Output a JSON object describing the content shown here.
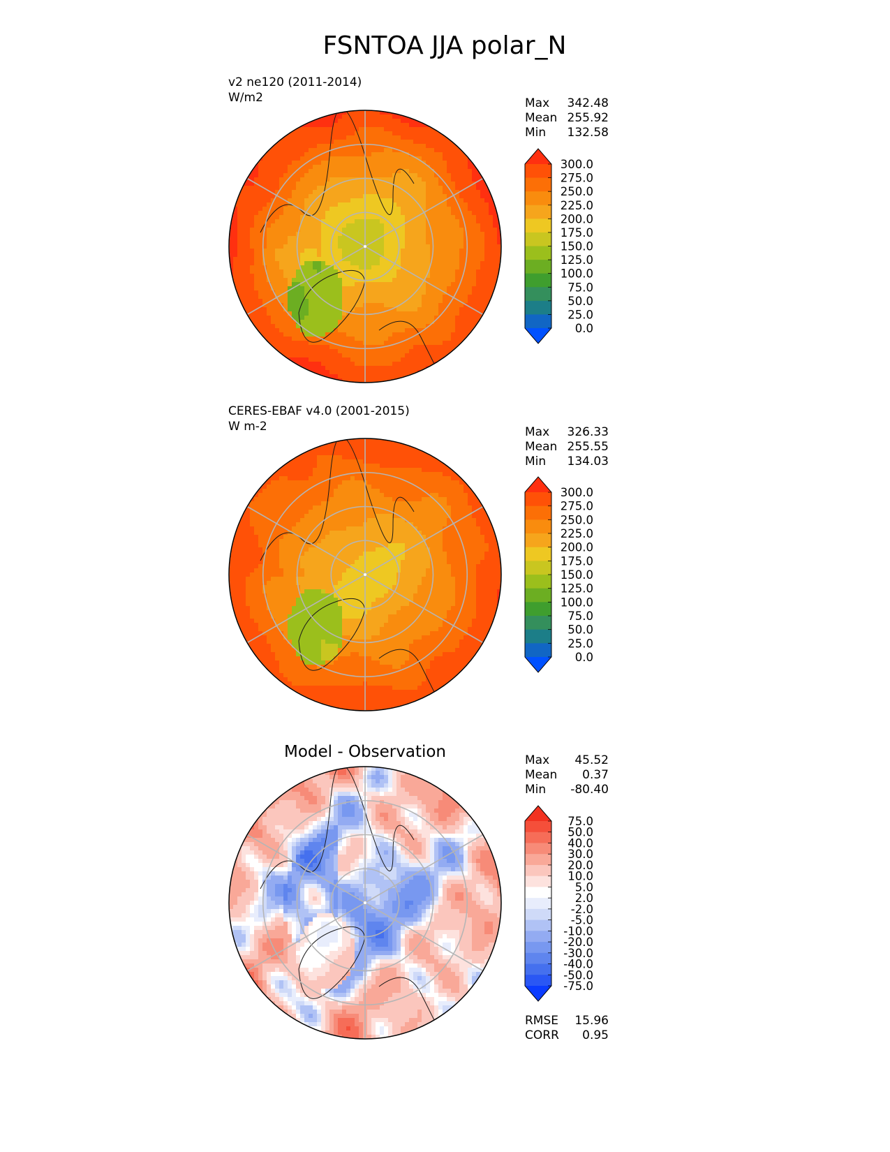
{
  "figure_title": "FSNTOA JJA polar_N",
  "chart_data": [
    {
      "type": "heatmap",
      "projection": "north-polar-stereographic",
      "title_line1": "v2 ne120 (2011-2014)",
      "title_line2": "W/m2",
      "stats": [
        {
          "label": "Max",
          "value": "342.48"
        },
        {
          "label": "Mean",
          "value": "255.92"
        },
        {
          "label": "Min",
          "value": "132.58"
        }
      ],
      "colorbar": {
        "ticks": [
          "300.0",
          "275.0",
          "250.0",
          "225.0",
          "200.0",
          "175.0",
          "150.0",
          "125.0",
          "100.0",
          "75.0",
          "50.0",
          "25.0",
          "0.0"
        ],
        "colors": [
          "#0051ff",
          "#1166c4",
          "#1c7e88",
          "#348f5c",
          "#3f9e2e",
          "#6cae22",
          "#9bbf1c",
          "#c9c620",
          "#eec822",
          "#f6a51c",
          "#f98c0e",
          "#fc6f06",
          "#ff5107",
          "#ff3010"
        ],
        "extend": "both"
      },
      "field": {
        "pole_value": 165,
        "land_low": 150,
        "ice_sheet": 140,
        "mid_value": 225,
        "outer_value": 300
      }
    },
    {
      "type": "heatmap",
      "projection": "north-polar-stereographic",
      "title_line1": "CERES-EBAF v4.0 (2001-2015)",
      "title_line2": "W m-2",
      "stats": [
        {
          "label": "Max",
          "value": "326.33"
        },
        {
          "label": "Mean",
          "value": "255.55"
        },
        {
          "label": "Min",
          "value": "134.03"
        }
      ],
      "colorbar": {
        "ticks": [
          "300.0",
          "275.0",
          "250.0",
          "225.0",
          "200.0",
          "175.0",
          "150.0",
          "125.0",
          "100.0",
          "75.0",
          "50.0",
          "25.0",
          "0.0"
        ],
        "colors": [
          "#0051ff",
          "#1166c4",
          "#1c7e88",
          "#348f5c",
          "#3f9e2e",
          "#6cae22",
          "#9bbf1c",
          "#c9c620",
          "#eec822",
          "#f6a51c",
          "#f98c0e",
          "#fc6f06",
          "#ff5107",
          "#ff3010"
        ],
        "extend": "both"
      },
      "field": {
        "pole_value": 190,
        "land_low": 160,
        "ice_sheet": 150,
        "mid_value": 235,
        "outer_value": 290
      }
    },
    {
      "type": "heatmap",
      "projection": "north-polar-stereographic",
      "title_center": "Model - Observation",
      "stats": [
        {
          "label": "Max",
          "value": "45.52"
        },
        {
          "label": "Mean",
          "value": "0.37"
        },
        {
          "label": "Min",
          "value": "-80.40"
        }
      ],
      "colorbar": {
        "ticks": [
          "75.0",
          "50.0",
          "40.0",
          "30.0",
          "20.0",
          "10.0",
          "5.0",
          "2.0",
          "-2.0",
          "-5.0",
          "-10.0",
          "-20.0",
          "-30.0",
          "-40.0",
          "-50.0",
          "-75.0"
        ],
        "colors": [
          "#0b3cff",
          "#2a57f4",
          "#4570ee",
          "#5f85ee",
          "#7898f0",
          "#93abf2",
          "#b0c2f5",
          "#cfdaf8",
          "#e8edfc",
          "#ffffff",
          "#fde2de",
          "#fbc6bd",
          "#f9a898",
          "#f78b78",
          "#f66d58",
          "#f54f3a",
          "#f23220"
        ],
        "extend": "both"
      },
      "stats_bottom": [
        {
          "label": "RMSE",
          "value": "15.96"
        },
        {
          "label": "CORR",
          "value": "0.95"
        }
      ],
      "field": {
        "pole_value": -20,
        "land_low": -30,
        "ice_sheet": 10,
        "mid_value": -10,
        "outer_value": 20
      }
    }
  ]
}
